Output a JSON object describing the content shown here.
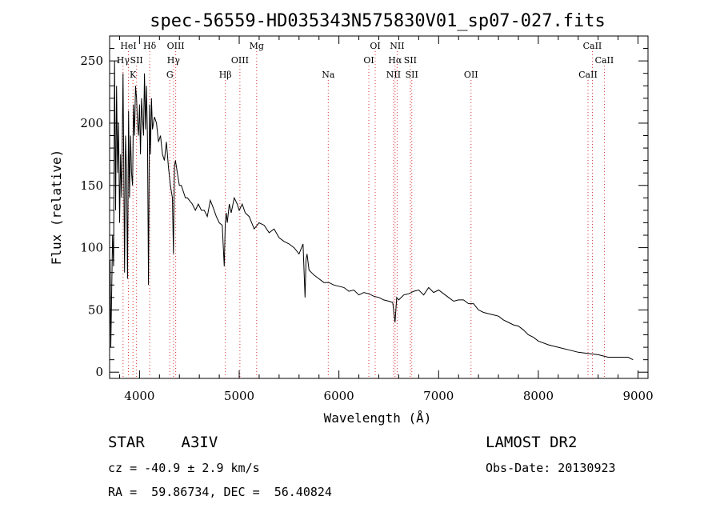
{
  "chart_data": {
    "type": "line",
    "title": "spec-56559-HD035343N575830V01_sp07-027.fits",
    "xlabel": "Wavelength (Å)",
    "ylabel": "Flux (relative)",
    "xlim": [
      3700,
      9100
    ],
    "ylim": [
      -5,
      270
    ],
    "xticks": [
      4000,
      5000,
      6000,
      7000,
      8000,
      9000
    ],
    "yticks": [
      0,
      50,
      100,
      150,
      200,
      250
    ],
    "grid": false,
    "series": [
      {
        "x": [
          3705,
          3712,
          3720,
          3730,
          3740,
          3750,
          3760,
          3770,
          3780,
          3790,
          3800,
          3810,
          3820,
          3835,
          3850,
          3860,
          3870,
          3880,
          3890,
          3900,
          3910,
          3920,
          3930,
          3940,
          3950,
          3960,
          3970,
          3980,
          3990,
          4000,
          4010,
          4020,
          4030,
          4040,
          4050,
          4060,
          4070,
          4080,
          4090,
          4100,
          4110,
          4120,
          4130,
          4150,
          4170,
          4190,
          4210,
          4230,
          4250,
          4270,
          4290,
          4310,
          4330,
          4340,
          4350,
          4360,
          4380,
          4400,
          4420,
          4440,
          4460,
          4480,
          4500,
          4530,
          4560,
          4590,
          4620,
          4650,
          4680,
          4710,
          4740,
          4770,
          4800,
          4830,
          4850,
          4860,
          4870,
          4880,
          4900,
          4920,
          4950,
          4980,
          5000,
          5030,
          5060,
          5100,
          5150,
          5200,
          5250,
          5300,
          5350,
          5400,
          5450,
          5500,
          5550,
          5600,
          5640,
          5660,
          5670,
          5680,
          5700,
          5750,
          5800,
          5850,
          5900,
          5950,
          6000,
          6050,
          6100,
          6150,
          6200,
          6250,
          6300,
          6350,
          6400,
          6450,
          6500,
          6540,
          6563,
          6580,
          6600,
          6650,
          6700,
          6750,
          6800,
          6850,
          6900,
          6950,
          7000,
          7050,
          7100,
          7150,
          7200,
          7250,
          7300,
          7350,
          7400,
          7450,
          7500,
          7550,
          7600,
          7650,
          7700,
          7750,
          7800,
          7850,
          7900,
          7950,
          8000,
          8100,
          8200,
          8300,
          8400,
          8500,
          8600,
          8700,
          8800,
          8900,
          8950
        ],
        "y": [
          90,
          20,
          60,
          110,
          85,
          250,
          130,
          230,
          160,
          200,
          120,
          175,
          140,
          240,
          80,
          190,
          160,
          75,
          210,
          140,
          190,
          160,
          150,
          215,
          190,
          230,
          220,
          200,
          190,
          215,
          175,
          220,
          205,
          190,
          240,
          195,
          230,
          185,
          70,
          215,
          175,
          220,
          195,
          205,
          200,
          185,
          190,
          175,
          170,
          185,
          165,
          150,
          140,
          95,
          165,
          170,
          160,
          150,
          150,
          145,
          140,
          140,
          138,
          135,
          130,
          135,
          130,
          130,
          125,
          138,
          132,
          125,
          120,
          118,
          85,
          120,
          128,
          120,
          135,
          128,
          140,
          135,
          130,
          135,
          128,
          125,
          115,
          120,
          118,
          112,
          115,
          108,
          105,
          103,
          100,
          95,
          103,
          60,
          90,
          95,
          82,
          78,
          75,
          72,
          72,
          70,
          69,
          68,
          65,
          66,
          62,
          64,
          63,
          61,
          60,
          58,
          57,
          56,
          40,
          60,
          58,
          62,
          63,
          65,
          66,
          62,
          68,
          64,
          66,
          63,
          60,
          57,
          58,
          58,
          55,
          55,
          50,
          48,
          47,
          46,
          45,
          42,
          40,
          38,
          37,
          34,
          30,
          28,
          25,
          22,
          20,
          18,
          16,
          15,
          14,
          12,
          12,
          12,
          10
        ]
      }
    ],
    "line_markers": [
      {
        "label": "HeI",
        "x": 3889,
        "row": 1
      },
      {
        "label": "Hγ",
        "x": 3835,
        "row": 2
      },
      {
        "label": "K",
        "x": 3934,
        "row": 3
      },
      {
        "label": "Hδ",
        "x": 4102,
        "row": 1
      },
      {
        "label": "SII",
        "x": 3970,
        "row": 2
      },
      {
        "label": "OIII",
        "x": 4363,
        "row": 1
      },
      {
        "label": "Hγ",
        "x": 4341,
        "row": 2
      },
      {
        "label": "G",
        "x": 4304,
        "row": 3
      },
      {
        "label": "Mg",
        "x": 5175,
        "row": 1
      },
      {
        "label": "OIII",
        "x": 5007,
        "row": 2
      },
      {
        "label": "Hβ",
        "x": 4861,
        "row": 3
      },
      {
        "label": "Na",
        "x": 5893,
        "row": 3
      },
      {
        "label": "OI",
        "x": 6364,
        "row": 1
      },
      {
        "label": "OI",
        "x": 6300,
        "row": 2
      },
      {
        "label": "NII",
        "x": 6584,
        "row": 1
      },
      {
        "label": "Hα",
        "x": 6563,
        "row": 2
      },
      {
        "label": "SII",
        "x": 6716,
        "row": 2
      },
      {
        "label": "NII",
        "x": 6548,
        "row": 3
      },
      {
        "label": "SII",
        "x": 6731,
        "row": 3
      },
      {
        "label": "OII",
        "x": 7325,
        "row": 3
      },
      {
        "label": "CaII",
        "x": 8542,
        "row": 1
      },
      {
        "label": "CaII",
        "x": 8662,
        "row": 2
      },
      {
        "label": "CaII",
        "x": 8498,
        "row": 3
      }
    ]
  },
  "info": {
    "object": "STAR    A3IV",
    "survey": "LAMOST DR2",
    "cz": "cz = -40.9 ± 2.9 km/s",
    "obs_date": "Obs-Date: 20130923",
    "coords": "RA =  59.86734, DEC =  56.40824"
  }
}
